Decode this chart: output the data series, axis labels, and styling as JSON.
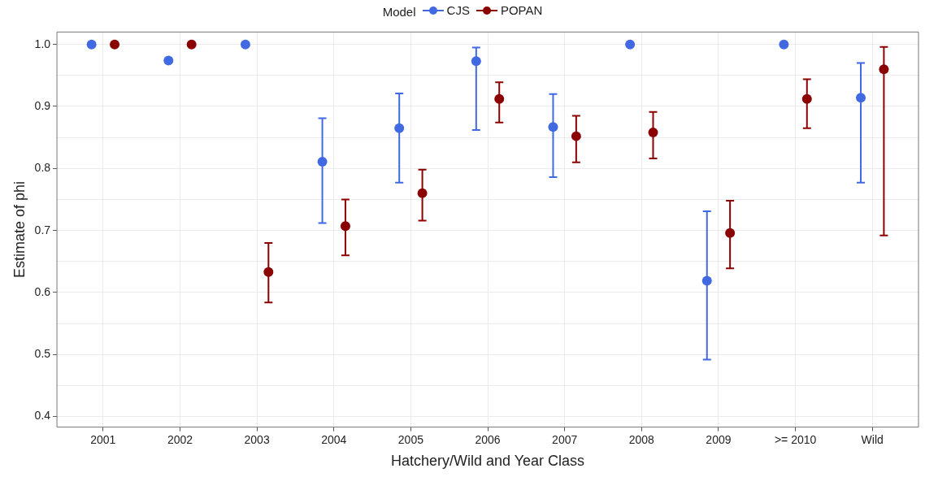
{
  "chart_data": {
    "type": "scatter",
    "xlabel": "Hatchery/Wild and Year Class",
    "ylabel": "Estimate of phi",
    "legend_title": "Model",
    "legend": "top",
    "grid": true,
    "marker": "circle",
    "categories": [
      "2001",
      "2002",
      "2003",
      "2004",
      "2005",
      "2006",
      "2007",
      "2008",
      "2009",
      ">= 2010",
      "Wild"
    ],
    "ylim": [
      0.383,
      1.02
    ],
    "yticks": [
      0.4,
      {
        "value": 0.45,
        "label": null
      },
      0.5,
      {
        "value": 0.55,
        "label": null
      },
      0.6,
      {
        "value": 0.65,
        "label": null
      },
      0.7,
      {
        "value": 0.75,
        "label": null
      },
      0.8,
      {
        "value": 0.85,
        "label": null
      },
      0.9,
      {
        "value": 0.95,
        "label": null
      },
      {
        "value": 1,
        "label": "1.0"
      }
    ],
    "series": [
      {
        "name": "CJS",
        "color": "#4169e1",
        "values": [
          1.0,
          0.974,
          1.0,
          0.811,
          0.865,
          0.973,
          0.867,
          1.0,
          0.619,
          1.0,
          0.914
        ],
        "errors": [
          null,
          null,
          null,
          [
            0.712,
            0.881
          ],
          [
            0.777,
            0.921
          ],
          [
            0.862,
            0.995
          ],
          [
            0.786,
            0.92
          ],
          null,
          [
            0.492,
            0.731
          ],
          null,
          [
            0.777,
            0.97
          ]
        ]
      },
      {
        "name": "POPAN",
        "color": "#8b0000",
        "values": [
          1.0,
          1.0,
          0.633,
          0.707,
          0.76,
          0.912,
          0.852,
          0.858,
          0.696,
          0.912,
          0.96
        ],
        "errors": [
          null,
          null,
          [
            0.584,
            0.68
          ],
          [
            0.66,
            0.75
          ],
          [
            0.716,
            0.798
          ],
          [
            0.874,
            0.939
          ],
          [
            0.81,
            0.885
          ],
          [
            0.816,
            0.891
          ],
          [
            0.639,
            0.748
          ],
          [
            0.865,
            0.944
          ],
          [
            0.692,
            0.996
          ]
        ]
      }
    ]
  }
}
